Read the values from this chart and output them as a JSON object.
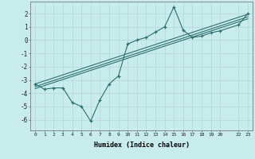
{
  "xlabel": "Humidex (Indice chaleur)",
  "background_color": "#c8ecec",
  "grid_color": "#b8dada",
  "line_color": "#2e6e6e",
  "x_data": [
    0,
    1,
    2,
    3,
    4,
    5,
    6,
    7,
    8,
    9,
    10,
    11,
    12,
    13,
    14,
    15,
    16,
    17,
    18,
    19,
    20,
    22,
    23
  ],
  "y_data": [
    -3.3,
    -3.7,
    -3.6,
    -3.6,
    -4.7,
    -5.0,
    -6.1,
    -4.5,
    -3.3,
    -2.7,
    -0.3,
    -0.0,
    0.2,
    0.6,
    1.0,
    2.5,
    0.75,
    0.2,
    0.3,
    0.55,
    0.7,
    1.15,
    2.0
  ],
  "reg_lines": [
    {
      "x": [
        0,
        23
      ],
      "y": [
        -3.3,
        1.95
      ]
    },
    {
      "x": [
        0,
        23
      ],
      "y": [
        -3.5,
        1.75
      ]
    },
    {
      "x": [
        0,
        23
      ],
      "y": [
        -3.65,
        1.6
      ]
    }
  ],
  "xlim": [
    -0.5,
    23.5
  ],
  "ylim": [
    -6.8,
    2.9
  ],
  "yticks": [
    -6,
    -5,
    -4,
    -3,
    -2,
    -1,
    0,
    1,
    2
  ],
  "xticks": [
    0,
    1,
    2,
    3,
    4,
    5,
    6,
    7,
    8,
    9,
    10,
    11,
    12,
    13,
    14,
    15,
    16,
    17,
    18,
    19,
    20,
    22,
    23
  ],
  "xtick_labels": [
    "0",
    "1",
    "2",
    "3",
    "4",
    "5",
    "6",
    "7",
    "8",
    "9",
    "10",
    "11",
    "12",
    "13",
    "14",
    "15",
    "16",
    "17",
    "18",
    "19",
    "20",
    "22",
    "23"
  ]
}
